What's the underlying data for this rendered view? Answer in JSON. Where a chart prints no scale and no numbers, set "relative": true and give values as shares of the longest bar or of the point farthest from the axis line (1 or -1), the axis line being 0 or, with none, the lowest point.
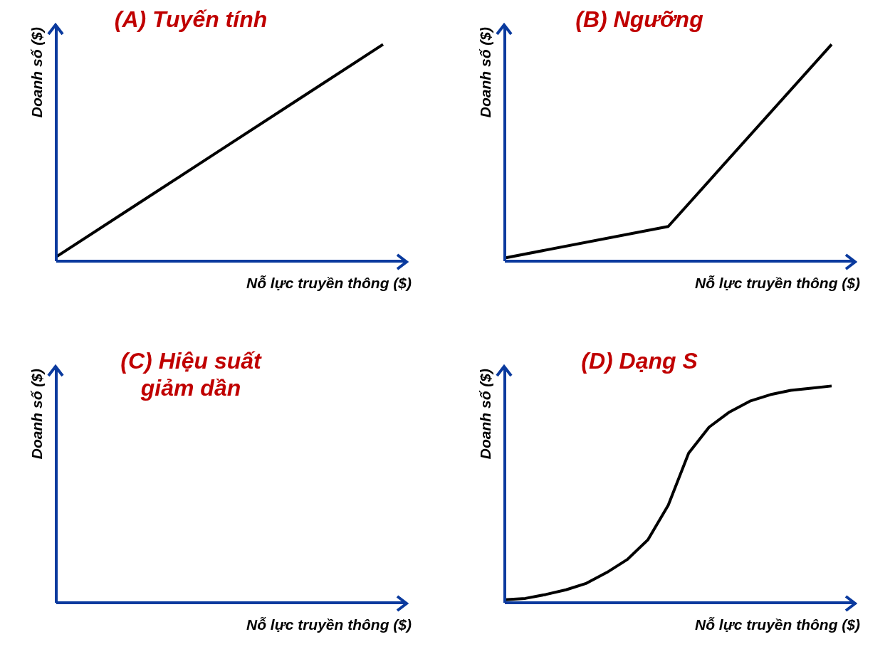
{
  "chart_data": [
    {
      "type": "line",
      "title": "(A) Tuyến tính",
      "xlabel": "Nỗ lực truyền thông ($)",
      "ylabel": "Doanh số ($)",
      "relative": true,
      "categories": [
        null,
        null,
        null,
        null,
        null
      ],
      "series": [
        {
          "color": "#000000",
          "values": [
            0.02,
            0.265,
            0.51,
            0.755,
            1
          ]
        }
      ]
    },
    {
      "type": "line",
      "title": "(B) Ngưỡng",
      "xlabel": "Nỗ lực truyền thông ($)",
      "ylabel": "Doanh số ($)",
      "relative": true,
      "categories": [
        null,
        null,
        null
      ],
      "series": [
        {
          "color": "#000000",
          "values": [
            0.015,
            0.16,
            1
          ]
        }
      ]
    },
    {
      "type": "other",
      "title": "(C) Hiệu suất giảm dần",
      "xlabel": "Nỗ lực truyền thông ($)",
      "ylabel": "Doanh số ($)"
    },
    {
      "type": "line",
      "title": "(D) Dạng S",
      "xlabel": "Nỗ lực truyền thông ($)",
      "ylabel": "Doanh số ($)",
      "relative": true,
      "categories": [
        null,
        null,
        null,
        null,
        null,
        null,
        null,
        null,
        null,
        null,
        null,
        null,
        null,
        null,
        null,
        null,
        null
      ],
      "series": [
        {
          "color": "#000000",
          "values": [
            0.014,
            0.02,
            0.038,
            0.06,
            0.09,
            0.14,
            0.2,
            0.29,
            0.45,
            0.69,
            0.81,
            0.88,
            0.93,
            0.96,
            0.98,
            0.99,
            1
          ]
        }
      ]
    }
  ]
}
